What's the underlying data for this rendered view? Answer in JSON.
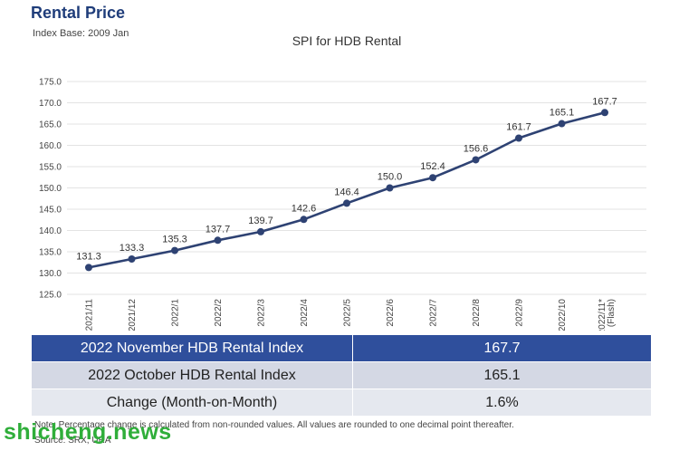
{
  "header": {
    "title": "Rental Price",
    "subtitle": "Index Base: 2009 Jan"
  },
  "chart_data": {
    "type": "line",
    "title": "SPI for HDB Rental",
    "xlabel": "",
    "ylabel": "",
    "categories": [
      "2021/11",
      "2021/12",
      "2022/1",
      "2022/2",
      "2022/3",
      "2022/4",
      "2022/5",
      "2022/6",
      "2022/7",
      "2022/8",
      "2022/9",
      "2022/10",
      "2022/11*"
    ],
    "category_sublabels": [
      "",
      "",
      "",
      "",
      "",
      "",
      "",
      "",
      "",
      "",
      "",
      "",
      "(Flash)"
    ],
    "series": [
      {
        "values": [
          131.3,
          133.3,
          135.3,
          137.7,
          139.7,
          142.6,
          146.4,
          150.0,
          152.4,
          156.6,
          161.7,
          165.1,
          167.7
        ],
        "color": "#2e4273"
      }
    ],
    "value_labels": [
      "131.3",
      "133.3",
      "135.3",
      "137.7",
      "139.7",
      "142.6",
      "146.4",
      "150.0",
      "152.4",
      "156.6",
      "161.7",
      "165.1",
      "167.7"
    ],
    "yticks": [
      "125.0",
      "130.0",
      "135.0",
      "140.0",
      "145.0",
      "150.0",
      "155.0",
      "160.0",
      "165.0",
      "170.0",
      "175.0"
    ],
    "ylim": [
      125,
      175
    ],
    "grid": true
  },
  "summary_table": {
    "rows": [
      {
        "label": "2022 November HDB Rental Index",
        "value": "167.7"
      },
      {
        "label": "2022 October HDB Rental Index",
        "value": "165.1"
      },
      {
        "label": "Change (Month-on-Month)",
        "value": "1.6%"
      }
    ]
  },
  "footer": {
    "note": "Note: Percentage change is calculated from non-rounded values.  All values are rounded to one decimal point thereafter.",
    "source": "Source: SRX, URA"
  },
  "watermark": {
    "text": "shicheng.news",
    "color": "#2fae3a"
  }
}
